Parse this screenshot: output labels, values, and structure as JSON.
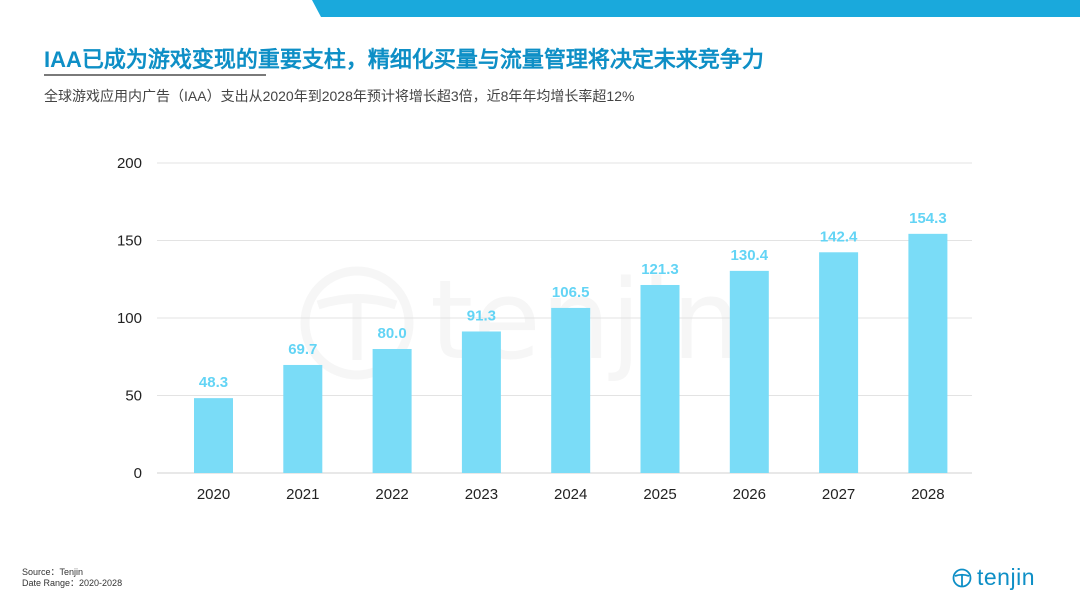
{
  "header": {
    "title": "IAA已成为游戏变现的重要支柱，精细化买量与流量管理将决定未来竞争力",
    "subtitle": "全球游戏应用内广告（IAA）支出从2020年到2028年预计将增长超3倍，近8年年均增长率超12%"
  },
  "chart_data": {
    "type": "bar",
    "categories": [
      "2020",
      "2021",
      "2022",
      "2023",
      "2024",
      "2025",
      "2026",
      "2027",
      "2028"
    ],
    "values": [
      48.3,
      69.7,
      80.0,
      91.3,
      106.5,
      121.3,
      130.4,
      142.4,
      154.3
    ],
    "value_labels": [
      "48.3",
      "69.7",
      "80.0",
      "91.3",
      "106.5",
      "121.3",
      "130.4",
      "142.4",
      "154.3"
    ],
    "yticks": [
      0,
      50,
      100,
      150,
      200
    ],
    "ylim": [
      0,
      200
    ],
    "title": "",
    "xlabel": "",
    "ylabel": "",
    "grid": true,
    "bar_color": "#7adcf7",
    "label_color": "#63d4f5"
  },
  "watermark": {
    "text": "tenjin"
  },
  "footer": {
    "source": "Source：Tenjin",
    "date_range": "Date Range：2020-2028"
  },
  "logo": {
    "text": "tenjin",
    "color": "#0e8fc6"
  },
  "colors": {
    "accent": "#1aa9dc",
    "title": "#0e8fc6"
  }
}
